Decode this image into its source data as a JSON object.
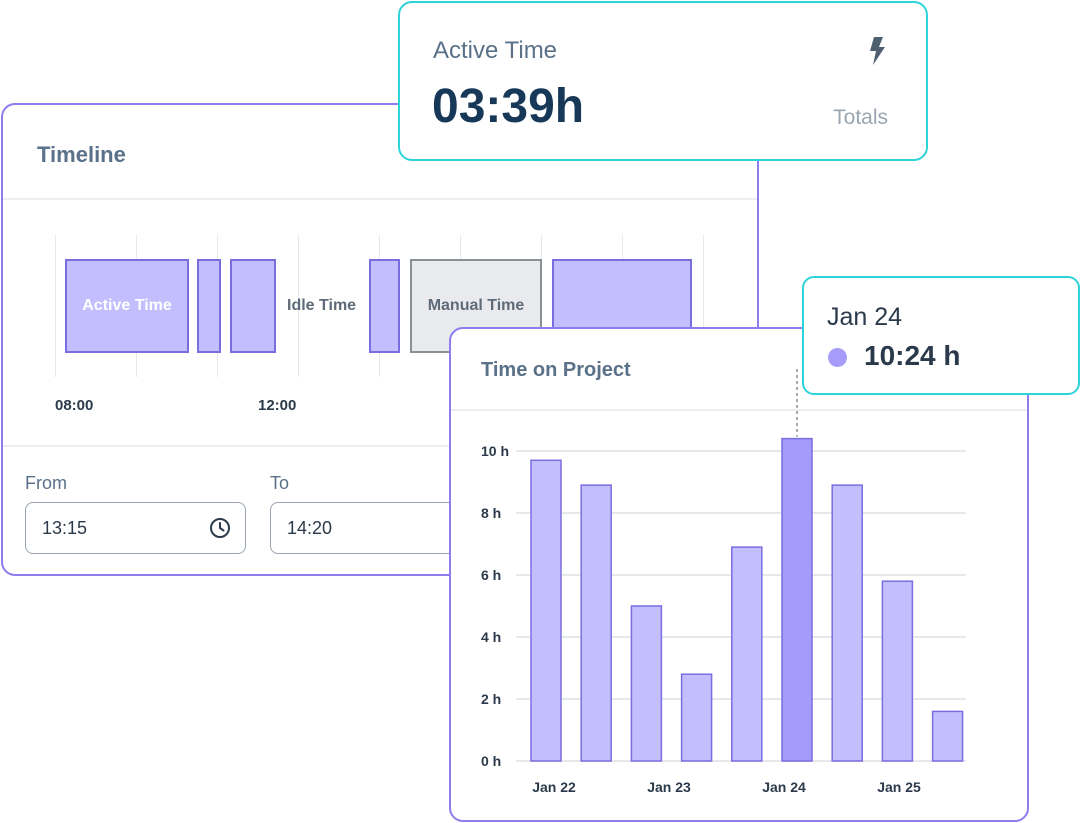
{
  "timeline": {
    "title": "Timeline",
    "segments": {
      "active_label": "Active Time",
      "idle_label": "Idle Time",
      "manual_label": "Manual Time"
    },
    "ticks": [
      "08:00",
      "12:00"
    ],
    "from_label": "From",
    "from_value": "13:15",
    "to_label": "To",
    "to_value": "14:20"
  },
  "active_time": {
    "label": "Active Time",
    "value": "03:39h",
    "totals_label": "Totals",
    "icon": "bolt-icon"
  },
  "project": {
    "title": "Time on Project"
  },
  "tooltip": {
    "date": "Jan 24",
    "value": "10:24 h"
  },
  "colors": {
    "bar": "#c3befe",
    "bar_highlight": "#a49cfb",
    "bar_border": "#7a6de0",
    "card_border_purple": "#8d7ef0",
    "card_border_teal": "#2ed3d9"
  },
  "chart_data": {
    "type": "bar",
    "title": "Time on Project",
    "xlabel": "",
    "ylabel": "",
    "ylim": [
      0,
      10
    ],
    "yticks": [
      "0 h",
      "2 h",
      "4 h",
      "6 h",
      "8 h",
      "10 h"
    ],
    "x_tick_labels": [
      "Jan 22",
      "Jan 23",
      "Jan 24",
      "Jan 25"
    ],
    "values": [
      9.7,
      8.9,
      5.0,
      2.8,
      6.9,
      10.4,
      8.9,
      5.8,
      1.6
    ],
    "highlight_index": 5,
    "grid": true
  }
}
